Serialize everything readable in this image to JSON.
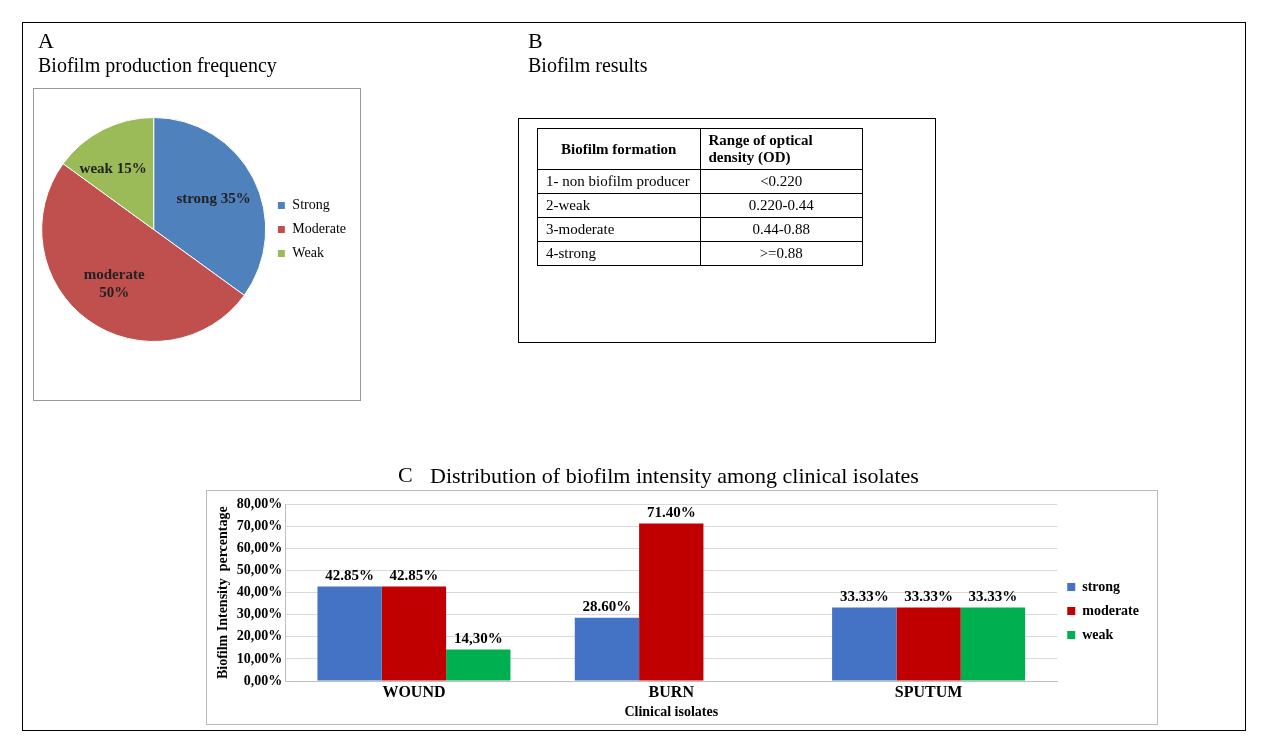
{
  "chart_data": [
    {
      "type": "pie",
      "title": "Biofilm production frequency",
      "annotations": [
        "A"
      ],
      "categories": [
        "Strong",
        "Moderate",
        "Weak"
      ],
      "values": [
        35,
        50,
        15
      ],
      "colors": [
        "#4f81bd",
        "#c0504d",
        "#9bbb59"
      ],
      "value_labels": [
        "strong 35%",
        "moderate 50%",
        "weak 15%"
      ],
      "legend": "right"
    },
    {
      "type": "other",
      "title": "Biofilm results",
      "annotations": [
        "B",
        "Biofilm formation",
        "Range of optical density (OD)",
        "1- non biofilm producer",
        "<0.220",
        "2-weak",
        "0.220-0.44",
        "3-moderate",
        "0.44-0.88",
        "4-strong",
        ">=0.88"
      ]
    },
    {
      "type": "bar",
      "title": "Distribution of biofilm intensity among clinical isolates",
      "annotations": [
        "C"
      ],
      "xlabel": "Clinical isolates",
      "ylabel": "Biofilm Intensity  percentage",
      "categories": [
        "WOUND",
        "BURN",
        "SPUTUM"
      ],
      "series": [
        {
          "name": "strong",
          "color": "#4472c4",
          "values": [
            42.85,
            28.6,
            33.33
          ],
          "value_labels": [
            "42.85%",
            "28.60%",
            "33.33%"
          ]
        },
        {
          "name": "moderate",
          "color": "#c00000",
          "values": [
            42.85,
            71.4,
            33.33
          ],
          "value_labels": [
            "42.85%",
            "71.40%",
            "33.33%"
          ]
        },
        {
          "name": "weak",
          "color": "#00b050",
          "values": [
            14.3,
            null,
            33.33
          ],
          "value_labels": [
            "14,30%",
            null,
            "33.33%"
          ]
        }
      ],
      "ylim": [
        0,
        80
      ],
      "yticks": [
        {
          "value": 0,
          "label": "0,00%"
        },
        {
          "value": 10,
          "label": "10,00%"
        },
        {
          "value": 20,
          "label": "20,00%"
        },
        {
          "value": 30,
          "label": "30,00%"
        },
        {
          "value": 40,
          "label": "40,00%"
        },
        {
          "value": 50,
          "label": "50,00%"
        },
        {
          "value": 60,
          "label": "60,00%"
        },
        {
          "value": 70,
          "label": "70,00%"
        },
        {
          "value": 80,
          "label": "80,00%"
        }
      ],
      "grid": "y",
      "legend": "right"
    }
  ]
}
